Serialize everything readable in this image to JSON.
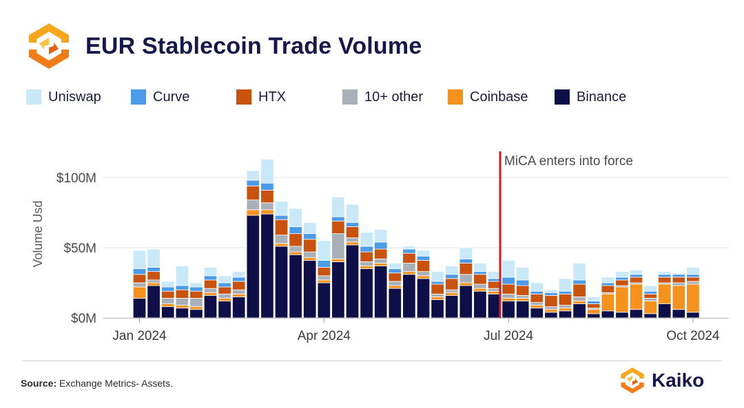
{
  "title": "EUR Stablecoin Trade Volume",
  "legend": [
    {
      "label": "Uniswap",
      "color": "#c9e9f9"
    },
    {
      "label": "Curve",
      "color": "#4b9be8"
    },
    {
      "label": "HTX",
      "color": "#c8520e"
    },
    {
      "label": "10+ other",
      "color": "#aab0ba"
    },
    {
      "label": "Coinbase",
      "color": "#f5921e"
    },
    {
      "label": "Binance",
      "color": "#0e0f48"
    }
  ],
  "source": {
    "prefix": "Source:",
    "text": " Exchange Metrics- Assets."
  },
  "brand": {
    "name": "Kaiko"
  },
  "chart_data": {
    "type": "bar",
    "stacked": true,
    "ylabel": "Volume Usd",
    "yticks": [
      "$100M",
      "$50M",
      "$0M"
    ],
    "ytick_values": [
      100,
      50,
      0
    ],
    "ylim": [
      0,
      115
    ],
    "xticks": [
      "Jan 2024",
      "Apr 2024",
      "Jul 2024",
      "Oct 2024"
    ],
    "xtick_indices": [
      0,
      13,
      26,
      39
    ],
    "annotation": {
      "text": "MiCA enters into force",
      "color": "#e0151b"
    },
    "series": [
      {
        "name": "Binance",
        "color": "#0e0f48",
        "values": [
          14,
          23,
          8,
          7,
          6,
          16,
          12,
          15,
          73,
          74,
          51,
          45,
          41,
          25,
          40,
          52,
          35,
          37,
          21,
          31,
          28,
          13,
          16,
          23,
          19,
          17,
          12,
          12,
          7,
          4,
          5,
          10,
          3,
          5,
          4,
          6,
          3,
          10,
          6,
          4
        ]
      },
      {
        "name": "Coinbase",
        "color": "#f5921e",
        "values": [
          8,
          2,
          2,
          2,
          2,
          2,
          2,
          2,
          4,
          3,
          2,
          2,
          2,
          2,
          2,
          2,
          2,
          2,
          2,
          2,
          2,
          2,
          2,
          2,
          2,
          2,
          2,
          2,
          2,
          2,
          2,
          2,
          3,
          12,
          18,
          18,
          9,
          14,
          17,
          20
        ]
      },
      {
        "name": "10+ other",
        "color": "#aab0ba",
        "values": [
          3,
          2,
          4,
          5,
          6,
          3,
          3,
          3,
          7,
          5,
          6,
          4,
          4,
          3,
          18,
          3,
          3,
          3,
          3,
          6,
          3,
          2,
          2,
          6,
          3,
          2,
          3,
          2,
          2,
          2,
          2,
          3,
          1,
          1,
          1,
          1,
          2,
          1,
          2,
          2
        ]
      },
      {
        "name": "HTX",
        "color": "#c8520e",
        "values": [
          6,
          6,
          5,
          6,
          5,
          6,
          5,
          6,
          10,
          9,
          11,
          9,
          9,
          6,
          9,
          8,
          7,
          7,
          6,
          7,
          8,
          7,
          8,
          8,
          7,
          5,
          7,
          7,
          6,
          8,
          8,
          9,
          3,
          5,
          4,
          4,
          3,
          4,
          4,
          3
        ]
      },
      {
        "name": "Curve",
        "color": "#4b9be8",
        "values": [
          4,
          3,
          3,
          3,
          3,
          3,
          3,
          3,
          4,
          5,
          3,
          5,
          4,
          5,
          3,
          3,
          4,
          5,
          3,
          3,
          3,
          2,
          3,
          3,
          2,
          2,
          5,
          4,
          2,
          2,
          2,
          3,
          2,
          2,
          2,
          2,
          2,
          2,
          2,
          2
        ]
      },
      {
        "name": "Uniswap",
        "color": "#c9e9f9",
        "values": [
          13,
          13,
          4,
          14,
          3,
          6,
          5,
          4,
          7,
          17,
          10,
          13,
          8,
          14,
          14,
          13,
          10,
          9,
          4,
          2,
          4,
          7,
          6,
          8,
          6,
          5,
          12,
          9,
          6,
          2,
          9,
          12,
          3,
          4,
          4,
          3,
          4,
          2,
          1,
          5
        ]
      }
    ]
  }
}
